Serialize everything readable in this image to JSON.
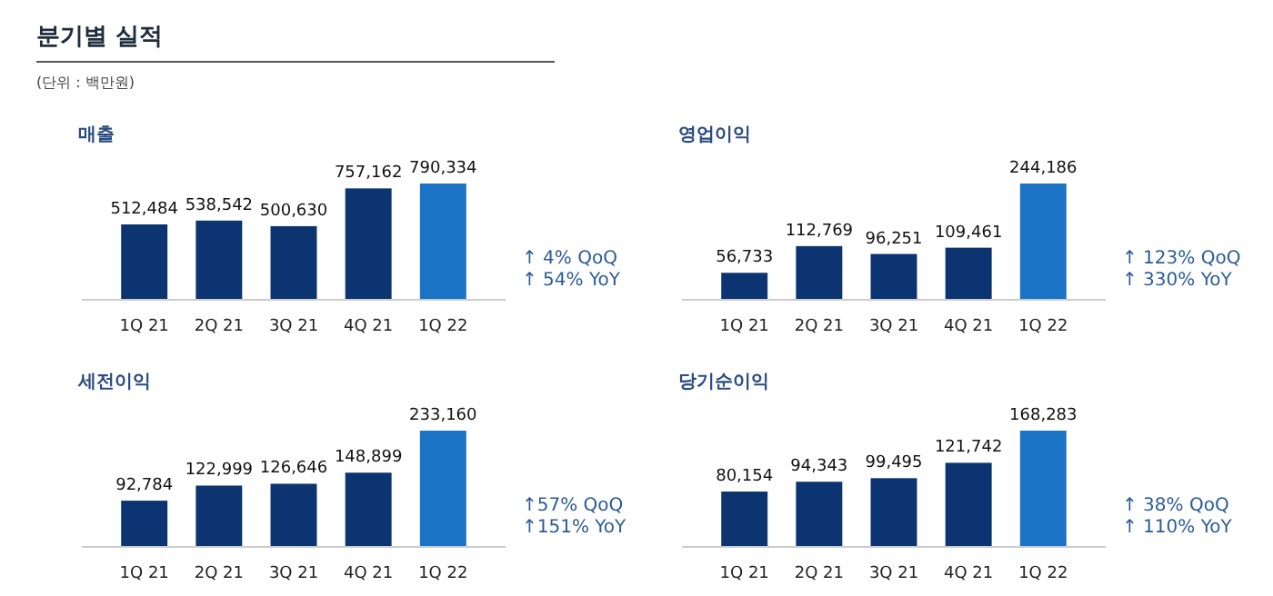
{
  "chart_data": [
    {
      "type": "other",
      "title": "분기별 실적",
      "subtitle": "(단위 : 백만원)"
    },
    {
      "type": "bar",
      "title": "매출",
      "categories": [
        "1Q 21",
        "2Q 21",
        "3Q 21",
        "4Q 21",
        "1Q 22"
      ],
      "values": [
        512484,
        538542,
        500630,
        757162,
        790334
      ],
      "value_labels": [
        "512,484",
        "538,542",
        "500,630",
        "757,162",
        "790,334"
      ],
      "colors": [
        "#0b3470",
        "#0b3470",
        "#0b3470",
        "#0b3470",
        "#1a73c4"
      ],
      "tick_labels": "x",
      "annotations": [
        "↑ 4% QoQ",
        "↑ 54% YoY"
      ]
    },
    {
      "type": "bar",
      "title": "영업이익",
      "categories": [
        "1Q 21",
        "2Q 21",
        "3Q 21",
        "4Q 21",
        "1Q 22"
      ],
      "values": [
        56733,
        112769,
        96251,
        109461,
        244186
      ],
      "value_labels": [
        "56,733",
        "112,769",
        "96,251",
        "109,461",
        "244,186"
      ],
      "colors": [
        "#0b3470",
        "#0b3470",
        "#0b3470",
        "#0b3470",
        "#1a73c4"
      ],
      "tick_labels": "x",
      "annotations": [
        "↑ 123% QoQ",
        "↑ 330% YoY"
      ]
    },
    {
      "type": "bar",
      "title": "세전이익",
      "categories": [
        "1Q 21",
        "2Q 21",
        "3Q 21",
        "4Q 21",
        "1Q 22"
      ],
      "values": [
        92784,
        122999,
        126646,
        148899,
        233160
      ],
      "value_labels": [
        "92,784",
        "122,999",
        "126,646",
        "148,899",
        "233,160"
      ],
      "colors": [
        "#0b3470",
        "#0b3470",
        "#0b3470",
        "#0b3470",
        "#1a73c4"
      ],
      "tick_labels": "x",
      "annotations": [
        "↑57% QoQ",
        "↑151% YoY"
      ]
    },
    {
      "type": "bar",
      "title": "당기순이익",
      "categories": [
        "1Q 21",
        "2Q 21",
        "3Q 21",
        "4Q 21",
        "1Q 22"
      ],
      "values": [
        80154,
        94343,
        99495,
        121742,
        168283
      ],
      "value_labels": [
        "80,154",
        "94,343",
        "99,495",
        "121,742",
        "168,283"
      ],
      "colors": [
        "#0b3470",
        "#0b3470",
        "#0b3470",
        "#0b3470",
        "#1a73c4"
      ],
      "tick_labels": "x",
      "annotations": [
        "↑ 38% QoQ",
        "↑ 110% YoY"
      ]
    }
  ]
}
